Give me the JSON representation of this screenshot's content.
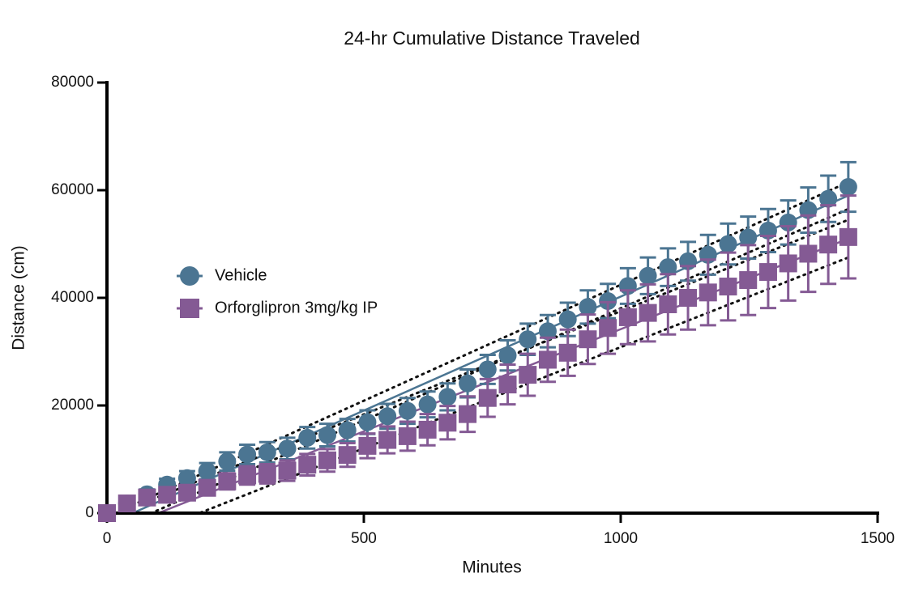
{
  "chart_data": {
    "type": "scatter",
    "title": "24-hr Cumulative Distance Traveled",
    "x_label": "Minutes",
    "y_label": "Distance (cm)",
    "xlim": [
      0,
      1500
    ],
    "ylim": [
      0,
      80000
    ],
    "xticks": [
      0,
      500,
      1000,
      1500
    ],
    "yticks": [
      0,
      20000,
      40000,
      60000,
      80000
    ],
    "legend": "left",
    "x": [
      0,
      39,
      78,
      117,
      156,
      195,
      234,
      273,
      312,
      351,
      390,
      429,
      468,
      507,
      546,
      585,
      624,
      663,
      702,
      741,
      780,
      819,
      858,
      897,
      936,
      975,
      1014,
      1053,
      1092,
      1131,
      1170,
      1209,
      1248,
      1287,
      1326,
      1365,
      1404,
      1443
    ],
    "series": [
      {
        "name": "Vehicle",
        "color": "#4b7592",
        "marker": "circle",
        "values": [
          0,
          1800,
          3500,
          5300,
          6500,
          7800,
          9600,
          10900,
          11300,
          12000,
          14000,
          14500,
          15400,
          16900,
          18000,
          19000,
          20200,
          21600,
          24100,
          26700,
          29300,
          32300,
          33800,
          36000,
          38300,
          39400,
          42200,
          44100,
          45700,
          46800,
          48000,
          50000,
          51200,
          52500,
          54000,
          56300,
          58400,
          60600
        ],
        "errors": [
          0,
          600,
          900,
          1100,
          1300,
          1500,
          1700,
          1800,
          1900,
          2000,
          2000,
          2100,
          2100,
          2200,
          2300,
          2400,
          2400,
          2500,
          2600,
          2700,
          2800,
          2900,
          3000,
          3100,
          3100,
          3200,
          3300,
          3400,
          3500,
          3600,
          3700,
          3800,
          3900,
          4000,
          4100,
          4200,
          4300,
          4600
        ],
        "fit": {
          "x": [
            50,
            1443
          ],
          "values": [
            0,
            59000
          ],
          "lower": [
            -1500,
            56500
          ],
          "upper": [
            1500,
            61500
          ]
        }
      },
      {
        "name": "Orforglipron 3mg/kg IP",
        "color": "#845a94",
        "marker": "square",
        "values": [
          0,
          1800,
          2900,
          3400,
          3800,
          4700,
          5900,
          7000,
          7300,
          7900,
          9000,
          9800,
          10800,
          12500,
          13600,
          14300,
          15500,
          16800,
          18400,
          21400,
          23900,
          25700,
          28500,
          29800,
          32300,
          34400,
          36400,
          37200,
          38800,
          40000,
          41000,
          42100,
          43300,
          44800,
          46400,
          48200,
          49900,
          51300
        ],
        "errors": [
          0,
          500,
          800,
          1000,
          1200,
          1400,
          1500,
          1700,
          1800,
          1900,
          2000,
          2100,
          2200,
          2300,
          2500,
          2700,
          2900,
          3100,
          3300,
          3500,
          3700,
          3900,
          4100,
          4300,
          4600,
          4800,
          5000,
          5300,
          5600,
          5900,
          6100,
          6300,
          6500,
          6700,
          6900,
          7100,
          7300,
          7700
        ],
        "fit": {
          "x": [
            100,
            1443
          ],
          "values": [
            0,
            51000
          ],
          "lower": [
            -3000,
            47500
          ],
          "upper": [
            3000,
            54500
          ]
        }
      }
    ]
  }
}
